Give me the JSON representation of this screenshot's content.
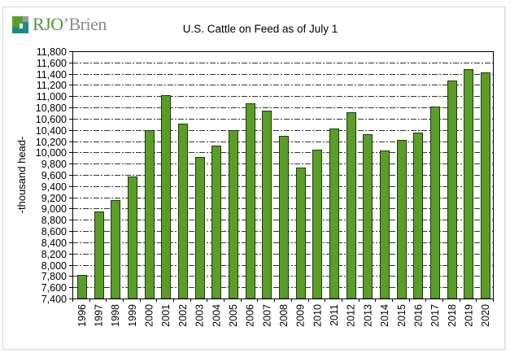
{
  "logo": {
    "mark": "rjobrien-logo-mark",
    "rjo": "RJO",
    "brien": "’Brien"
  },
  "colors": {
    "bar_fill": "#5a9e28",
    "bar_stroke": "#1e3a10",
    "grid": "#333333",
    "axis": "#000000"
  },
  "chart_data": {
    "type": "bar",
    "title": "U.S. Cattle on Feed as of July 1",
    "xlabel": "",
    "ylabel": "-thousand head-",
    "ylim": [
      7400,
      11800
    ],
    "ytick_step": 200,
    "ytick_labels": [
      "7,400",
      "7,600",
      "7,800",
      "8,000",
      "8,200",
      "8,400",
      "8,600",
      "8,800",
      "9,000",
      "9,200",
      "9,400",
      "9,600",
      "9,800",
      "10,000",
      "10,200",
      "10,400",
      "10,600",
      "10,800",
      "11,000",
      "11,200",
      "11,400",
      "11,600",
      "11,800"
    ],
    "grid": "horizontal dash-dot",
    "categories": [
      "1996",
      "1997",
      "1998",
      "1999",
      "2000",
      "2001",
      "2002",
      "2003",
      "2004",
      "2005",
      "2006",
      "2007",
      "2008",
      "2009",
      "2010",
      "2011",
      "2012",
      "2013",
      "2014",
      "2015",
      "2016",
      "2017",
      "2018",
      "2019",
      "2020"
    ],
    "values": [
      7820,
      8952,
      9147,
      9567,
      10396,
      11014,
      10511,
      9922,
      10128,
      10400,
      10868,
      10745,
      10288,
      9737,
      10054,
      10430,
      10710,
      10322,
      10040,
      10228,
      10355,
      10815,
      11276,
      11480,
      11430
    ]
  }
}
